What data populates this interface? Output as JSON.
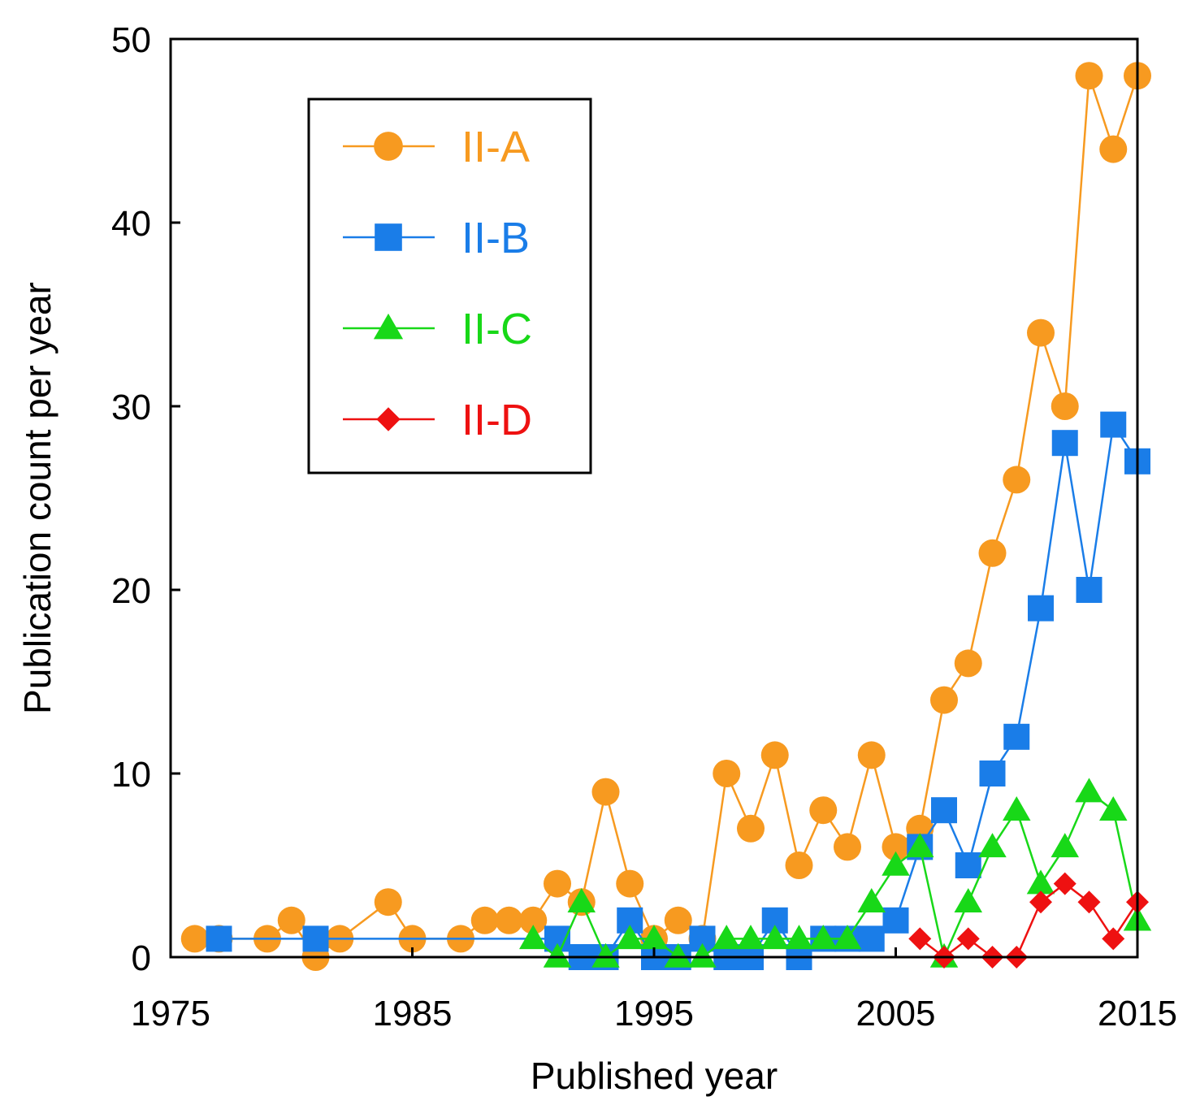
{
  "chart_data": {
    "type": "line",
    "title": "",
    "xlabel": "Published year",
    "ylabel": "Publication count per year",
    "xlim": [
      1975,
      2015
    ],
    "ylim": [
      0,
      50
    ],
    "xticks": [
      1975,
      1985,
      1995,
      2005,
      2015
    ],
    "yticks": [
      0,
      10,
      20,
      30,
      40,
      50
    ],
    "grid": false,
    "legend_position": "upper-left",
    "series": [
      {
        "name": "II-A",
        "color": "#f79a20",
        "marker": "circle",
        "points": [
          [
            1976,
            1
          ],
          [
            1977,
            1
          ],
          [
            1979,
            1
          ],
          [
            1980,
            2
          ],
          [
            1981,
            0
          ],
          [
            1982,
            1
          ],
          [
            1984,
            3
          ],
          [
            1985,
            1
          ],
          [
            1987,
            1
          ],
          [
            1988,
            2
          ],
          [
            1989,
            2
          ],
          [
            1990,
            2
          ],
          [
            1991,
            4
          ],
          [
            1992,
            3
          ],
          [
            1993,
            9
          ],
          [
            1994,
            4
          ],
          [
            1995,
            1
          ],
          [
            1996,
            2
          ],
          [
            1997,
            1
          ],
          [
            1998,
            10
          ],
          [
            1999,
            7
          ],
          [
            2000,
            11
          ],
          [
            2001,
            5
          ],
          [
            2002,
            8
          ],
          [
            2003,
            6
          ],
          [
            2004,
            11
          ],
          [
            2005,
            6
          ],
          [
            2006,
            7
          ],
          [
            2007,
            14
          ],
          [
            2008,
            16
          ],
          [
            2009,
            22
          ],
          [
            2010,
            26
          ],
          [
            2011,
            34
          ],
          [
            2012,
            30
          ],
          [
            2013,
            48
          ],
          [
            2014,
            44
          ],
          [
            2015,
            48
          ]
        ]
      },
      {
        "name": "II-B",
        "color": "#1a7de8",
        "marker": "square",
        "points": [
          [
            1977,
            1
          ],
          [
            1981,
            1
          ],
          [
            1991,
            1
          ],
          [
            1992,
            0
          ],
          [
            1993,
            0
          ],
          [
            1994,
            2
          ],
          [
            1995,
            0
          ],
          [
            1996,
            0
          ],
          [
            1997,
            1
          ],
          [
            1998,
            0
          ],
          [
            1999,
            0
          ],
          [
            2000,
            2
          ],
          [
            2001,
            0
          ],
          [
            2002,
            1
          ],
          [
            2003,
            1
          ],
          [
            2004,
            1
          ],
          [
            2005,
            2
          ],
          [
            2006,
            6
          ],
          [
            2007,
            8
          ],
          [
            2008,
            5
          ],
          [
            2009,
            10
          ],
          [
            2010,
            12
          ],
          [
            2011,
            19
          ],
          [
            2012,
            28
          ],
          [
            2013,
            20
          ],
          [
            2014,
            29
          ],
          [
            2015,
            27
          ]
        ]
      },
      {
        "name": "II-C",
        "color": "#18d818",
        "marker": "triangle",
        "points": [
          [
            1990,
            1
          ],
          [
            1991,
            0
          ],
          [
            1992,
            3
          ],
          [
            1993,
            0
          ],
          [
            1994,
            1
          ],
          [
            1995,
            1
          ],
          [
            1996,
            0
          ],
          [
            1997,
            0
          ],
          [
            1998,
            1
          ],
          [
            1999,
            1
          ],
          [
            2000,
            1
          ],
          [
            2001,
            1
          ],
          [
            2002,
            1
          ],
          [
            2003,
            1
          ],
          [
            2004,
            3
          ],
          [
            2005,
            5
          ],
          [
            2006,
            6
          ],
          [
            2007,
            0
          ],
          [
            2008,
            3
          ],
          [
            2009,
            6
          ],
          [
            2010,
            8
          ],
          [
            2011,
            4
          ],
          [
            2012,
            6
          ],
          [
            2013,
            9
          ],
          [
            2014,
            8
          ],
          [
            2015,
            2
          ]
        ]
      },
      {
        "name": "II-D",
        "color": "#ee1111",
        "marker": "diamond",
        "points": [
          [
            2006,
            1
          ],
          [
            2007,
            0
          ],
          [
            2008,
            1
          ],
          [
            2009,
            0
          ],
          [
            2010,
            0
          ],
          [
            2011,
            3
          ],
          [
            2012,
            4
          ],
          [
            2013,
            3
          ],
          [
            2014,
            1
          ],
          [
            2015,
            3
          ]
        ]
      }
    ]
  }
}
